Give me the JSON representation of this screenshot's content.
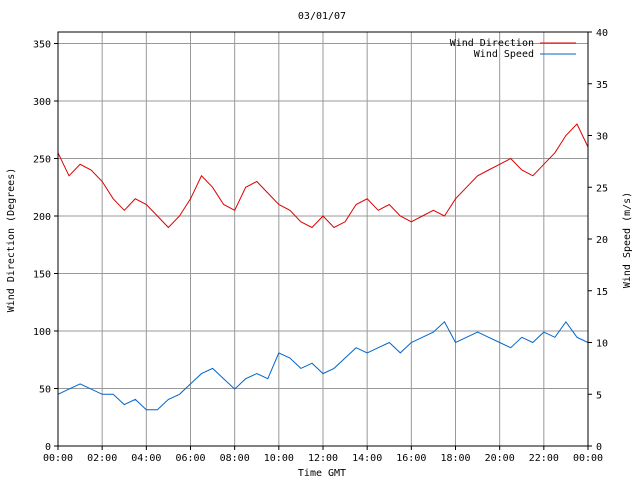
{
  "chart_data": {
    "type": "line",
    "title": "03/01/07",
    "xlabel": "Time GMT",
    "ylabel_left": "Wind Direction (Degrees)",
    "ylabel_right": "Wind Speed (m/s)",
    "x_ticks": [
      "00:00",
      "02:00",
      "04:00",
      "06:00",
      "08:00",
      "10:00",
      "12:00",
      "14:00",
      "16:00",
      "18:00",
      "20:00",
      "22:00",
      "00:00"
    ],
    "yleft_ticks": [
      0,
      50,
      100,
      150,
      200,
      250,
      300,
      350
    ],
    "yright_ticks": [
      0,
      5,
      10,
      15,
      20,
      25,
      30,
      35,
      40
    ],
    "xlim_hours": [
      0,
      24
    ],
    "yleft_lim": [
      0,
      360
    ],
    "yright_lim": [
      0,
      40
    ],
    "grid": true,
    "legend_position": "top-right",
    "colors": {
      "wind_direction": "#dd0000",
      "wind_speed": "#0066cc",
      "grid": "#999999"
    },
    "series": [
      {
        "name": "Wind Direction",
        "axis": "left",
        "x_hours": [
          0,
          0.5,
          1,
          1.5,
          2,
          2.5,
          3,
          3.5,
          4,
          4.5,
          5,
          5.5,
          6,
          6.5,
          7,
          7.5,
          8,
          8.5,
          9,
          9.5,
          10,
          10.5,
          11,
          11.5,
          12,
          12.5,
          13,
          13.5,
          14,
          14.5,
          15,
          15.5,
          16,
          16.5,
          17,
          17.5,
          18,
          18.5,
          19,
          19.5,
          20,
          20.5,
          21,
          21.5,
          22,
          22.5,
          23,
          23.5,
          24
        ],
        "values": [
          255,
          235,
          245,
          240,
          230,
          215,
          205,
          215,
          210,
          200,
          190,
          200,
          215,
          235,
          225,
          210,
          205,
          225,
          230,
          220,
          210,
          205,
          195,
          190,
          200,
          190,
          195,
          210,
          215,
          205,
          210,
          200,
          195,
          200,
          205,
          200,
          215,
          225,
          235,
          240,
          245,
          250,
          240,
          235,
          245,
          255,
          270,
          280,
          260
        ]
      },
      {
        "name": "Wind Speed",
        "axis": "right",
        "x_hours": [
          0,
          0.5,
          1,
          1.5,
          2,
          2.5,
          3,
          3.5,
          4,
          4.5,
          5,
          5.5,
          6,
          6.5,
          7,
          7.5,
          8,
          8.5,
          9,
          9.5,
          10,
          10.5,
          11,
          11.5,
          12,
          12.5,
          13,
          13.5,
          14,
          14.5,
          15,
          15.5,
          16,
          16.5,
          17,
          17.5,
          18,
          18.5,
          19,
          19.5,
          20,
          20.5,
          21,
          21.5,
          22,
          22.5,
          23,
          23.5,
          24
        ],
        "values": [
          5,
          5.5,
          6,
          5.5,
          5,
          5,
          4,
          4.5,
          3.5,
          3.5,
          4.5,
          5,
          6,
          7,
          7.5,
          6.5,
          5.5,
          6.5,
          7,
          6.5,
          9,
          8.5,
          7.5,
          8,
          7,
          7.5,
          8.5,
          9.5,
          9,
          9.5,
          10,
          9,
          10,
          10.5,
          11,
          12,
          10,
          10.5,
          11,
          10.5,
          10,
          9.5,
          10.5,
          10,
          11,
          10.5,
          12,
          10.5,
          10
        ]
      }
    ]
  }
}
